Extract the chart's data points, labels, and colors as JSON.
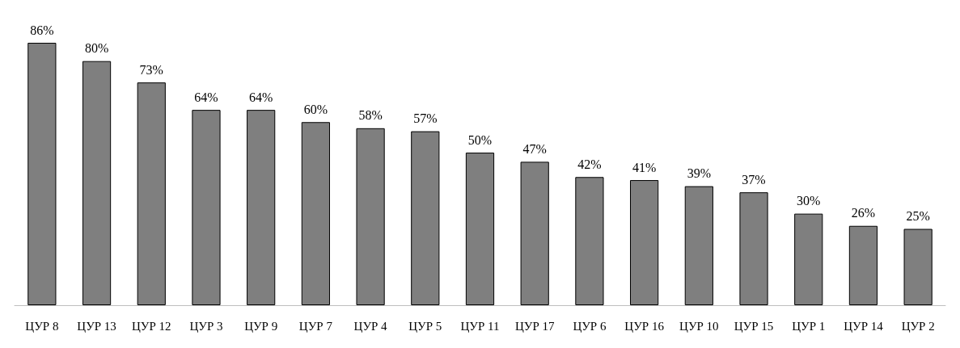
{
  "chart_data": {
    "type": "bar",
    "categories": [
      "ЦУР 8",
      "ЦУР 13",
      "ЦУР 12",
      "ЦУР 3",
      "ЦУР 9",
      "ЦУР 7",
      "ЦУР 4",
      "ЦУР 5",
      "ЦУР 11",
      "ЦУР 17",
      "ЦУР 6",
      "ЦУР 16",
      "ЦУР 10",
      "ЦУР 15",
      "ЦУР 1",
      "ЦУР 14",
      "ЦУР 2"
    ],
    "values": [
      86,
      80,
      73,
      64,
      64,
      60,
      58,
      57,
      50,
      47,
      42,
      41,
      39,
      37,
      30,
      26,
      25
    ],
    "value_labels": [
      "86%",
      "80%",
      "73%",
      "64%",
      "64%",
      "60%",
      "58%",
      "57%",
      "50%",
      "47%",
      "42%",
      "41%",
      "39%",
      "37%",
      "30%",
      "26%",
      "25%"
    ],
    "color": "#7f7f7f"
  }
}
